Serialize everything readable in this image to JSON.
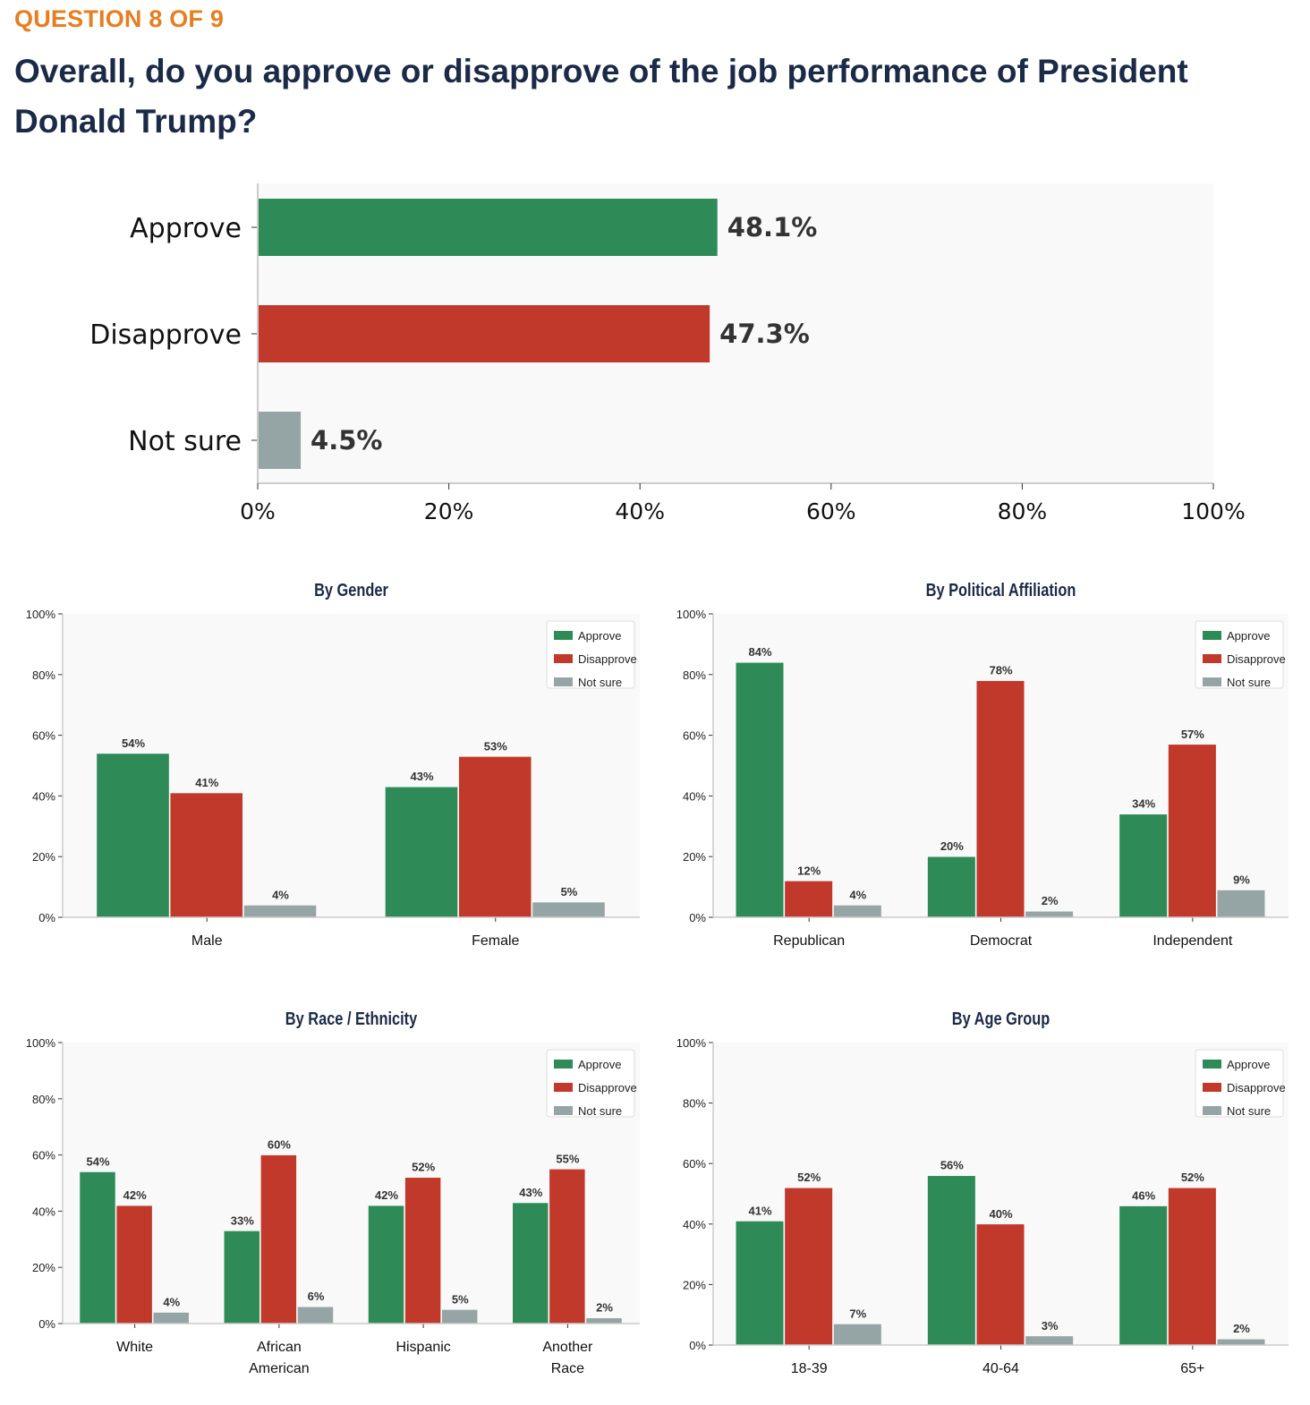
{
  "header": {
    "question_number": "QUESTION 8 OF 9",
    "question_text": "Overall, do you approve or disapprove of the job performance of President Donald Trump?"
  },
  "colors": {
    "approve": "#2e8b57",
    "disapprove": "#c0392b",
    "not_sure": "#95a5a6",
    "title": "#1b2a47",
    "accent": "#e67e22"
  },
  "chart_data": [
    {
      "type": "bar",
      "orientation": "horizontal",
      "title": "",
      "categories": [
        "Approve",
        "Disapprove",
        "Not sure"
      ],
      "values": [
        48.1,
        47.3,
        4.5
      ],
      "value_labels": [
        "48.1%",
        "47.3%",
        "4.5%"
      ],
      "xlim": [
        0,
        100
      ],
      "xticks": [
        "0%",
        "20%",
        "40%",
        "60%",
        "80%",
        "100%"
      ],
      "grid": false
    },
    {
      "type": "bar",
      "title": "By Gender",
      "categories": [
        "Male",
        "Female"
      ],
      "series": [
        {
          "name": "Approve",
          "values": [
            54,
            43
          ]
        },
        {
          "name": "Disapprove",
          "values": [
            41,
            53
          ]
        },
        {
          "name": "Not sure",
          "values": [
            4,
            5
          ]
        }
      ],
      "ylim": [
        0,
        100
      ],
      "yticks": [
        "0%",
        "20%",
        "40%",
        "60%",
        "80%",
        "100%"
      ],
      "legend": "top-right"
    },
    {
      "type": "bar",
      "title": "By Political Affiliation",
      "categories": [
        "Republican",
        "Democrat",
        "Independent"
      ],
      "series": [
        {
          "name": "Approve",
          "values": [
            84,
            20,
            34
          ]
        },
        {
          "name": "Disapprove",
          "values": [
            12,
            78,
            57
          ]
        },
        {
          "name": "Not sure",
          "values": [
            4,
            2,
            9
          ]
        }
      ],
      "ylim": [
        0,
        100
      ],
      "yticks": [
        "0%",
        "20%",
        "40%",
        "60%",
        "80%",
        "100%"
      ],
      "legend": "top-right"
    },
    {
      "type": "bar",
      "title": "By Race / Ethnicity",
      "categories": [
        "White",
        "African American",
        "Hispanic",
        "Another Race"
      ],
      "series": [
        {
          "name": "Approve",
          "values": [
            54,
            33,
            42,
            43
          ]
        },
        {
          "name": "Disapprove",
          "values": [
            42,
            60,
            52,
            55
          ]
        },
        {
          "name": "Not sure",
          "values": [
            4,
            6,
            5,
            2
          ]
        }
      ],
      "ylim": [
        0,
        100
      ],
      "yticks": [
        "0%",
        "20%",
        "40%",
        "60%",
        "80%",
        "100%"
      ],
      "legend": "top-right"
    },
    {
      "type": "bar",
      "title": "By Age Group",
      "categories": [
        "18-39",
        "40-64",
        "65+"
      ],
      "series": [
        {
          "name": "Approve",
          "values": [
            41,
            56,
            46
          ]
        },
        {
          "name": "Disapprove",
          "values": [
            52,
            40,
            52
          ]
        },
        {
          "name": "Not sure",
          "values": [
            7,
            3,
            2
          ]
        }
      ],
      "ylim": [
        0,
        100
      ],
      "yticks": [
        "0%",
        "20%",
        "40%",
        "60%",
        "80%",
        "100%"
      ],
      "legend": "top-right"
    }
  ]
}
